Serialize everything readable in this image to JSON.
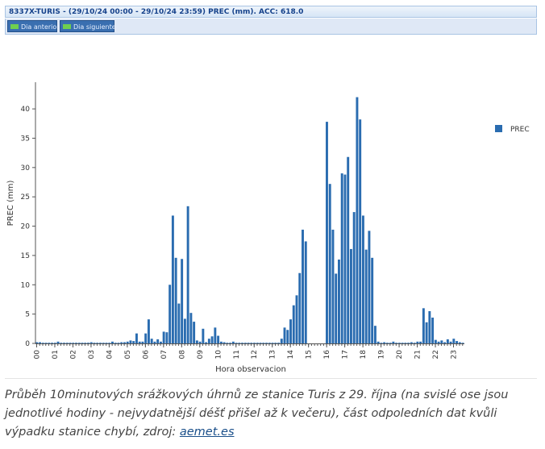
{
  "header": {
    "title": "8337X-TURIS - (29/10/24 00:00 - 29/10/24 23:59) PREC (mm). ACC: 618.0",
    "prev_label": "Dia anterior",
    "next_label": "Dia siguiente"
  },
  "colors": {
    "bar": "#2a6cb0",
    "axis": "#555555",
    "grid": "#e6e6e6",
    "header_bg": "#d6e5f6",
    "button_bg": "#3a6fb0"
  },
  "icons": {
    "prev": "arrow-left-icon",
    "next": "arrow-right-icon"
  },
  "chart_data": {
    "type": "bar",
    "xlabel": "Hora observacion",
    "ylabel": "PREC (mm)",
    "ylim": [
      0,
      44
    ],
    "yticks": [
      0,
      5,
      10,
      15,
      20,
      25,
      30,
      35,
      40
    ],
    "xticks": [
      "00",
      "01",
      "02",
      "03",
      "04",
      "05",
      "06",
      "07",
      "08",
      "09",
      "10",
      "11",
      "12",
      "13",
      "14",
      "15",
      "16",
      "17",
      "18",
      "19",
      "20",
      "21",
      "22",
      "23"
    ],
    "grid": false,
    "legend": "right",
    "series": [
      {
        "name": "PREC",
        "values": [
          0.2,
          0.2,
          0.1,
          0.1,
          0.1,
          0.1,
          0.1,
          0.3,
          0.1,
          0.1,
          0.1,
          0.1,
          0.1,
          0.1,
          0.1,
          0.1,
          0.1,
          0.1,
          0.2,
          0.1,
          0.1,
          0.1,
          0.1,
          0.1,
          0.1,
          0.3,
          0.1,
          0.1,
          0.2,
          0.2,
          0.3,
          0.5,
          0.4,
          1.7,
          0.3,
          0.3,
          1.7,
          4.1,
          0.8,
          0.3,
          0.7,
          0.3,
          2,
          1.9,
          10,
          21.8,
          14.6,
          6.8,
          14.4,
          4.2,
          23.4,
          5.2,
          3.7,
          0.5,
          0.3,
          2.5,
          0.2,
          0.8,
          1.2,
          2.7,
          1.3,
          0.3,
          0.2,
          0.1,
          0.1,
          0.3,
          0.1,
          0.1,
          0.1,
          0.1,
          0.1,
          0.1,
          0.1,
          0.1,
          0.1,
          0.1,
          0.1,
          0.1,
          0.1,
          0.1,
          0.1,
          0.8,
          2.7,
          2.3,
          4.1,
          6.5,
          8.2,
          12,
          19.4,
          17.4,
          null,
          null,
          null,
          null,
          null,
          null,
          37.8,
          27.2,
          19.4,
          11.9,
          14.3,
          29,
          28.8,
          31.8,
          16.1,
          22.4,
          42,
          38.2,
          21.8,
          16,
          19.2,
          14.6,
          3,
          0.3,
          0.1,
          0.2,
          0.1,
          0.1,
          0.3,
          0.1,
          0.1,
          0.1,
          0.1,
          0.1,
          0.2,
          0.1,
          0.3,
          0.3,
          6,
          3.6,
          5.5,
          4.4,
          0.6,
          0.3,
          0.5,
          0.2,
          0.7,
          0.3,
          0.8,
          0.4,
          0.2,
          0.1
        ]
      }
    ]
  },
  "caption": {
    "text": "Průběh 10minutových srážkových úhrnů ze stanice Turis z 29. října (na svislé ose jsou jednotlivé hodiny - nejvydatnější déšť přišel až k večeru), část odpoledních dat kvůli výpadku stanice chybí, zdroj: ",
    "link": "aemet.es"
  }
}
